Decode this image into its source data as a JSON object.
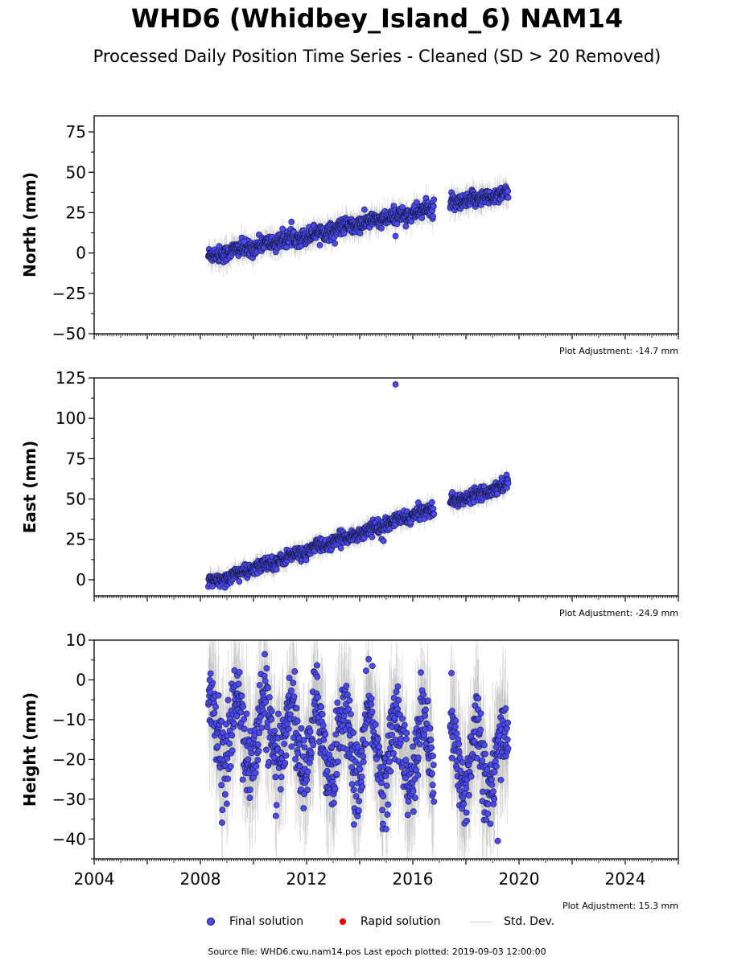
{
  "title": "WHD6 (Whidbey_Island_6) NAM14",
  "subtitle": "Processed Daily Position Time Series - Cleaned (SD > 20 Removed)",
  "legend": {
    "final": "Final solution",
    "rapid": "Rapid solution",
    "stddev": "Std. Dev."
  },
  "footer": "Source file: WHD6.cwu.nam14.pos  Last epoch plotted: 2019-09-03 12:00:00",
  "colors": {
    "final_fill": "#4a4af0",
    "final_edge": "#15153a",
    "rapid": "#e00000",
    "stddev": "#9a9a9a"
  },
  "chart_data": [
    {
      "type": "scatter",
      "ylabel": "North (mm)",
      "ylim": [
        -50,
        85
      ],
      "yticks": [
        -50,
        -25,
        0,
        25,
        50,
        75
      ],
      "xlim": [
        2004.0,
        2026.0
      ],
      "xticks": [],
      "adjustment": "Plot Adjustment: -14.7 mm",
      "trend": {
        "start": 2008.3,
        "end": 2019.6,
        "y0": -2.0,
        "rate": 3.5
      },
      "gap": [
        2016.8,
        2017.4
      ],
      "scatter": 2.5,
      "seasonal_amp": 0.8,
      "outliers": [
        {
          "x": 2015.35,
          "y": 10.5
        },
        {
          "x": 2009.65,
          "y": 7.0
        }
      ],
      "series": [
        {
          "name": "Final solution",
          "sampled": true
        },
        {
          "name": "Std. Dev.",
          "sampled": true
        }
      ]
    },
    {
      "type": "scatter",
      "ylabel": "East (mm)",
      "ylim": [
        -10,
        125
      ],
      "yticks": [
        0,
        25,
        50,
        75,
        100,
        125
      ],
      "xlim": [
        2004.0,
        2026.0
      ],
      "xticks": [],
      "adjustment": "Plot Adjustment: -24.9 mm",
      "trend": {
        "start": 2008.3,
        "end": 2019.6,
        "y0": -2.5,
        "rate": 5.5
      },
      "gap": [
        2016.8,
        2017.4
      ],
      "scatter": 2.0,
      "seasonal_amp": 0.8,
      "outliers": [
        {
          "x": 2015.35,
          "y": 121.0
        },
        {
          "x": 2014.9,
          "y": 24.0
        }
      ],
      "series": [
        {
          "name": "Final solution",
          "sampled": true
        },
        {
          "name": "Std. Dev.",
          "sampled": true
        }
      ]
    },
    {
      "type": "scatter",
      "ylabel": "Height (mm)",
      "ylim": [
        -45,
        10
      ],
      "yticks": [
        -40,
        -30,
        -20,
        -10,
        0,
        10
      ],
      "xlim": [
        2004.0,
        2026.0
      ],
      "xticks": [
        2004,
        2008,
        2012,
        2016,
        2020,
        2024
      ],
      "adjustment": "Plot Adjustment: 15.3 mm",
      "trend": {
        "start": 2008.3,
        "end": 2019.6,
        "y0": -12.0,
        "rate": -0.8
      },
      "gap": [
        2016.8,
        2017.4
      ],
      "scatter": 5.0,
      "seasonal_amp": 9.0,
      "outliers": [
        {
          "x": 2008.35,
          "y": 0.0
        },
        {
          "x": 2019.2,
          "y": -40.5
        }
      ],
      "series": [
        {
          "name": "Final solution",
          "sampled": true
        },
        {
          "name": "Std. Dev.",
          "sampled": true
        }
      ]
    }
  ]
}
